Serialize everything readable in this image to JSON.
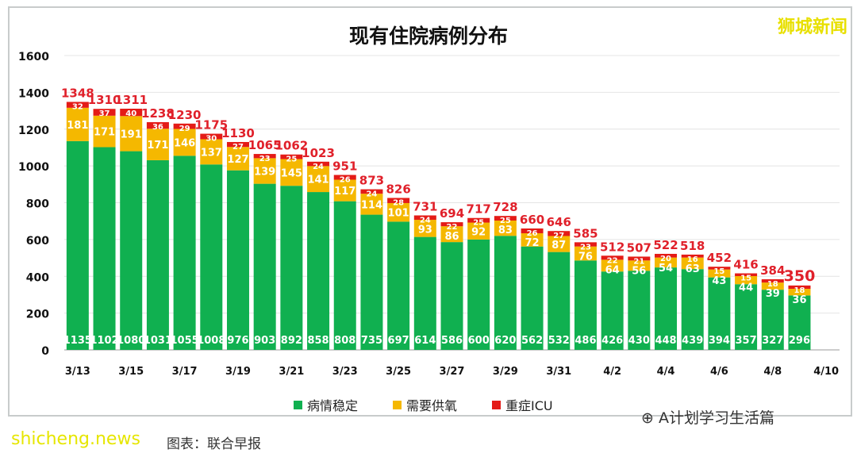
{
  "chart_data": {
    "type": "bar",
    "stacked": true,
    "title": "现有住院病例分布",
    "categories": [
      "3/13",
      "3/14",
      "3/15",
      "3/16",
      "3/17",
      "3/18",
      "3/19",
      "3/20",
      "3/21",
      "3/22",
      "3/23",
      "3/24",
      "3/25",
      "3/26",
      "3/27",
      "3/28",
      "3/29",
      "3/30",
      "3/31",
      "4/1",
      "4/2",
      "4/3",
      "4/4",
      "4/5",
      "4/6",
      "4/7",
      "4/8",
      "4/9",
      "4/10"
    ],
    "tick_labels": [
      "3/13",
      "3/15",
      "3/17",
      "3/19",
      "3/21",
      "3/23",
      "3/25",
      "3/27",
      "3/29",
      "3/31",
      "4/2",
      "4/4",
      "4/6",
      "4/8",
      "4/10"
    ],
    "series": [
      {
        "name": "病情稳定",
        "color": "#10b050",
        "values": [
          1135,
          1102,
          1080,
          1031,
          1055,
          1008,
          976,
          903,
          892,
          858,
          808,
          735,
          697,
          614,
          586,
          600,
          620,
          562,
          532,
          486,
          426,
          430,
          448,
          439,
          394,
          357,
          327,
          296,
          null
        ]
      },
      {
        "name": "需要供氧",
        "color": "#f5b800",
        "values": [
          181,
          171,
          191,
          171,
          146,
          137,
          127,
          139,
          145,
          141,
          117,
          114,
          101,
          93,
          86,
          92,
          83,
          72,
          87,
          76,
          64,
          56,
          54,
          63,
          43,
          44,
          39,
          36,
          null
        ]
      },
      {
        "name": "重症ICU",
        "color": "#e41b17",
        "values": [
          32,
          37,
          40,
          36,
          29,
          30,
          27,
          23,
          25,
          24,
          26,
          24,
          28,
          24,
          22,
          25,
          25,
          26,
          27,
          23,
          22,
          21,
          20,
          16,
          15,
          15,
          18,
          18,
          null
        ]
      }
    ],
    "totals": [
      1348,
      1310,
      1311,
      1238,
      1230,
      1175,
      1130,
      1065,
      1062,
      1023,
      951,
      873,
      826,
      731,
      694,
      717,
      728,
      660,
      646,
      585,
      512,
      507,
      522,
      518,
      452,
      416,
      384,
      350,
      null
    ],
    "y_ticks": [
      0,
      200,
      400,
      600,
      800,
      1000,
      1200,
      1400,
      1600
    ],
    "ylim": [
      0,
      1600
    ],
    "grid": true,
    "legend": "bottom"
  },
  "watermark": "狮城新闻",
  "wechat_label": "A计划学习生活篇",
  "credit": "图表：联合早报",
  "site": "shicheng.news"
}
